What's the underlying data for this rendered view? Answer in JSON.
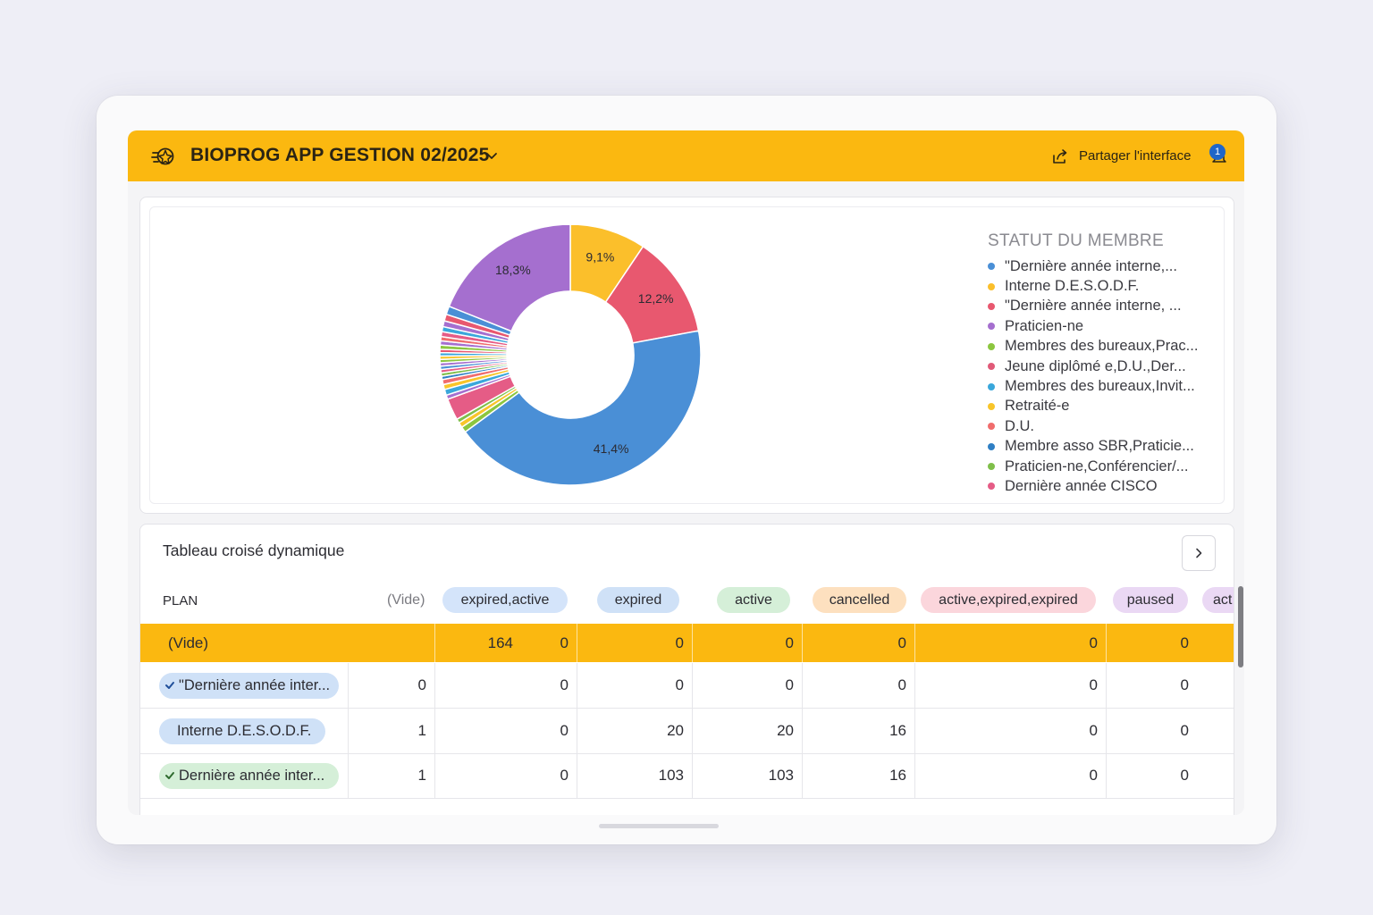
{
  "app": {
    "title": "BIOPROG APP GESTION 02/2025",
    "share_label": "Partager l'interface",
    "notification_count": "1",
    "accent_color": "#fbb810"
  },
  "chart_data": {
    "type": "pie",
    "title": "STATUT DU MEMBRE",
    "donut": true,
    "legend_placement": "right",
    "legend": [
      {
        "label": "\"Dernière année interne,...",
        "color": "#4a8fd6"
      },
      {
        "label": "Interne D.E.S.O.D.F.",
        "color": "#fbbf2b"
      },
      {
        "label": "\"Dernière année interne, ...",
        "color": "#e8586f"
      },
      {
        "label": "Praticien-ne",
        "color": "#a56fcf"
      },
      {
        "label": "Membres des bureaux,Prac...",
        "color": "#8cc63f"
      },
      {
        "label": "Jeune diplômé e,D.U.,Der...",
        "color": "#e05a78"
      },
      {
        "label": "Membres des bureaux,Invit...",
        "color": "#3aa7db"
      },
      {
        "label": "Retraité-e",
        "color": "#f8c52a"
      },
      {
        "label": "D.U.",
        "color": "#f06d6d"
      },
      {
        "label": "Membre asso SBR,Praticie...",
        "color": "#2f7fc4"
      },
      {
        "label": "Praticien-ne,Conférencier/...",
        "color": "#7fbf4a"
      },
      {
        "label": "Dernière année CISCO",
        "color": "#e55c86"
      }
    ],
    "slices": [
      {
        "label": "9,1%",
        "value": 9.1,
        "color": "#fbbf2b"
      },
      {
        "label": "12,2%",
        "value": 12.2,
        "color": "#e8586f"
      },
      {
        "label": "41,4%",
        "value": 41.4,
        "color": "#4a8fd6"
      },
      {
        "label": "",
        "value": 0.7,
        "color": "#8cc63f"
      },
      {
        "label": "",
        "value": 0.6,
        "color": "#f8c52a"
      },
      {
        "label": "",
        "value": 0.5,
        "color": "#7fbf4a"
      },
      {
        "label": "",
        "value": 2.6,
        "color": "#e55c86"
      },
      {
        "label": "",
        "value": 0.5,
        "color": "#a56fcf"
      },
      {
        "label": "",
        "value": 0.7,
        "color": "#3aa7db"
      },
      {
        "label": "",
        "value": 0.6,
        "color": "#f8c52a"
      },
      {
        "label": "",
        "value": 0.6,
        "color": "#f06d6d"
      },
      {
        "label": "",
        "value": 0.4,
        "color": "#2f7fc4"
      },
      {
        "label": "",
        "value": 0.4,
        "color": "#7fbf4a"
      },
      {
        "label": "",
        "value": 0.4,
        "color": "#e55c86"
      },
      {
        "label": "",
        "value": 0.4,
        "color": "#4a8fd6"
      },
      {
        "label": "",
        "value": 0.4,
        "color": "#a56fcf"
      },
      {
        "label": "",
        "value": 0.4,
        "color": "#8cc63f"
      },
      {
        "label": "",
        "value": 0.4,
        "color": "#f8c52a"
      },
      {
        "label": "",
        "value": 0.4,
        "color": "#3aa7db"
      },
      {
        "label": "",
        "value": 0.4,
        "color": "#e8586f"
      },
      {
        "label": "",
        "value": 0.5,
        "color": "#8cc63f"
      },
      {
        "label": "",
        "value": 0.5,
        "color": "#a56fcf"
      },
      {
        "label": "",
        "value": 0.5,
        "color": "#f06d6d"
      },
      {
        "label": "",
        "value": 0.6,
        "color": "#e55c86"
      },
      {
        "label": "",
        "value": 0.6,
        "color": "#3aa7db"
      },
      {
        "label": "",
        "value": 0.7,
        "color": "#a56fcf"
      },
      {
        "label": "",
        "value": 0.8,
        "color": "#e8586f"
      },
      {
        "label": "",
        "value": 1.0,
        "color": "#4a8fd6"
      },
      {
        "label": "18,3%",
        "value": 18.3,
        "color": "#a56fcf"
      }
    ]
  },
  "pivot": {
    "title": "Tableau croisé dynamique",
    "row_header": "PLAN",
    "columns": [
      {
        "label": "(Vide)",
        "color": ""
      },
      {
        "label": "expired,active",
        "color": "#d4e4fa"
      },
      {
        "label": "expired",
        "color": "#cfe1f7"
      },
      {
        "label": "active",
        "color": "#d5efd8"
      },
      {
        "label": "cancelled",
        "color": "#fde0bf"
      },
      {
        "label": "active,expired,expired",
        "color": "#fbd6dc"
      },
      {
        "label": "paused",
        "color": "#ead8f4"
      },
      {
        "label": "act",
        "color": "#ead8f4"
      }
    ],
    "rows": [
      {
        "label": "(Vide)",
        "pill_color": "",
        "check": false,
        "values": [
          "164",
          "0",
          "0",
          "0",
          "0",
          "0",
          "0"
        ]
      },
      {
        "label": "\"Dernière année inter...",
        "pill_color": "#cfe1f7",
        "check": true,
        "check_color": "#1f4f9a",
        "values": [
          "0",
          "0",
          "0",
          "0",
          "0",
          "0",
          "0"
        ]
      },
      {
        "label": "Interne D.E.S.O.D.F.",
        "pill_color": "#cfe1f7",
        "check": false,
        "values": [
          "1",
          "0",
          "20",
          "20",
          "16",
          "0",
          "0"
        ]
      },
      {
        "label": "Dernière année inter...",
        "pill_color": "#d5efd8",
        "check": true,
        "check_color": "#2f6b2f",
        "values": [
          "1",
          "0",
          "103",
          "103",
          "16",
          "0",
          "0"
        ]
      }
    ]
  }
}
